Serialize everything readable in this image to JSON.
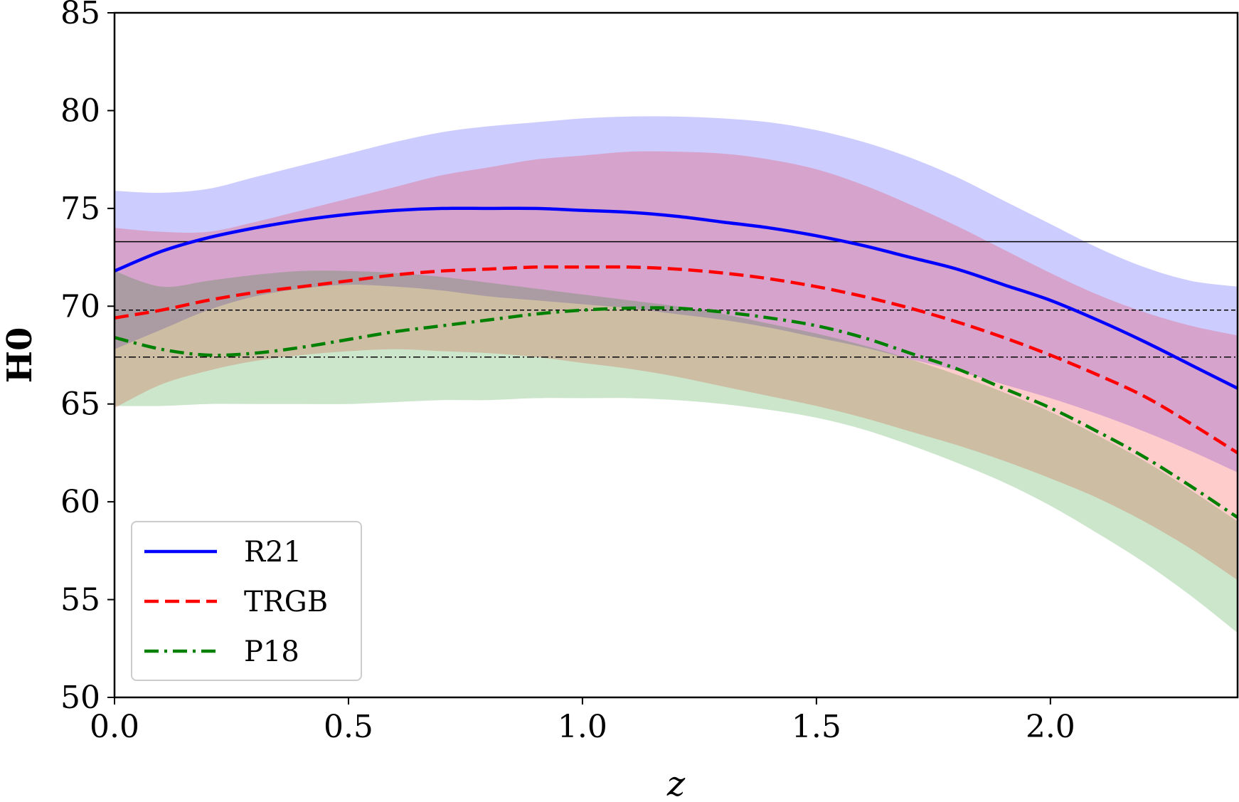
{
  "chart_data": {
    "type": "line",
    "xlabel": "z",
    "ylabel": "H0",
    "xlim": [
      0,
      2.4
    ],
    "ylim": [
      50,
      85
    ],
    "xticks": [
      "0.0",
      "0.5",
      "1.0",
      "1.5",
      "2.0"
    ],
    "yticks": [
      "50",
      "55",
      "60",
      "65",
      "70",
      "75",
      "80",
      "85"
    ],
    "grid": false,
    "legend_position": "lower-left",
    "x": [
      0.0,
      0.1,
      0.2,
      0.3,
      0.4,
      0.5,
      0.6,
      0.7,
      0.8,
      0.9,
      1.0,
      1.1,
      1.2,
      1.3,
      1.4,
      1.5,
      1.6,
      1.7,
      1.8,
      1.9,
      2.0,
      2.1,
      2.2,
      2.3,
      2.4
    ],
    "series": [
      {
        "name": "R21",
        "color": "#0000ff",
        "line_style": "solid",
        "band_color": "#0000ff",
        "values": [
          71.8,
          72.8,
          73.5,
          74.0,
          74.4,
          74.7,
          74.9,
          75.0,
          75.0,
          75.0,
          74.9,
          74.8,
          74.6,
          74.3,
          74.0,
          73.6,
          73.1,
          72.5,
          71.9,
          71.1,
          70.3,
          69.3,
          68.2,
          67.0,
          65.8
        ],
        "upper": [
          75.9,
          75.8,
          76.0,
          76.6,
          77.2,
          77.8,
          78.4,
          78.9,
          79.2,
          79.4,
          79.6,
          79.7,
          79.7,
          79.6,
          79.4,
          79.0,
          78.4,
          77.6,
          76.6,
          75.4,
          74.2,
          73.0,
          72.0,
          71.3,
          71.0
        ],
        "lower": [
          67.8,
          68.8,
          69.8,
          70.5,
          70.9,
          71.1,
          71.0,
          70.8,
          70.5,
          70.3,
          70.1,
          69.9,
          69.6,
          69.3,
          68.9,
          68.4,
          67.9,
          67.3,
          66.7,
          66.0,
          65.3,
          64.5,
          63.6,
          62.6,
          61.5
        ]
      },
      {
        "name": "TRGB",
        "color": "#ff0000",
        "line_style": "dashed",
        "band_color": "#ff0000",
        "values": [
          69.4,
          69.8,
          70.3,
          70.7,
          71.0,
          71.3,
          71.6,
          71.8,
          71.9,
          72.0,
          72.0,
          72.0,
          71.9,
          71.7,
          71.4,
          71.0,
          70.5,
          69.9,
          69.2,
          68.4,
          67.5,
          66.5,
          65.4,
          64.0,
          62.5
        ],
        "upper": [
          74.0,
          73.8,
          73.8,
          74.3,
          74.9,
          75.5,
          76.1,
          76.7,
          77.1,
          77.5,
          77.7,
          77.9,
          77.9,
          77.8,
          77.5,
          77.0,
          76.2,
          75.2,
          74.1,
          72.9,
          71.7,
          70.6,
          69.7,
          69.0,
          68.5
        ],
        "lower": [
          64.8,
          66.0,
          66.7,
          67.2,
          67.5,
          67.7,
          67.8,
          67.7,
          67.6,
          67.4,
          67.1,
          66.8,
          66.4,
          65.9,
          65.4,
          64.9,
          64.3,
          63.6,
          62.9,
          62.1,
          61.2,
          60.2,
          59.0,
          57.6,
          56.0
        ]
      },
      {
        "name": "P18",
        "color": "#008000",
        "line_style": "dashdot",
        "band_color": "#008000",
        "values": [
          68.4,
          67.8,
          67.5,
          67.6,
          67.9,
          68.3,
          68.7,
          69.0,
          69.3,
          69.6,
          69.8,
          69.9,
          69.9,
          69.7,
          69.4,
          69.0,
          68.4,
          67.6,
          66.8,
          65.8,
          64.8,
          63.6,
          62.3,
          60.8,
          59.2
        ],
        "upper": [
          71.8,
          71.0,
          71.3,
          71.6,
          71.8,
          71.8,
          71.7,
          71.5,
          71.2,
          70.9,
          70.6,
          70.3,
          70.0,
          69.6,
          69.1,
          68.6,
          68.0,
          67.3,
          66.5,
          65.6,
          64.6,
          63.4,
          62.1,
          60.6,
          59.0
        ],
        "lower": [
          64.9,
          64.9,
          65.0,
          65.0,
          65.0,
          65.0,
          65.1,
          65.2,
          65.2,
          65.3,
          65.3,
          65.3,
          65.2,
          65.0,
          64.7,
          64.3,
          63.7,
          62.9,
          62.0,
          61.0,
          59.8,
          58.4,
          56.9,
          55.2,
          53.3
        ]
      }
    ],
    "reference_lines": [
      {
        "y": 73.3,
        "color": "#000000",
        "line_style": "solid"
      },
      {
        "y": 69.8,
        "color": "#000000",
        "line_style": "dashed"
      },
      {
        "y": 67.4,
        "color": "#000000",
        "line_style": "dashdot"
      }
    ]
  }
}
